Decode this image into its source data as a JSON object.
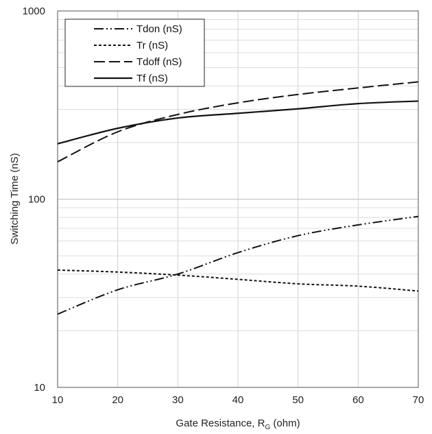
{
  "chart_data": {
    "type": "line",
    "xlabel": "Gate Resistance, R",
    "xlabel_subscript": "G",
    "xlabel_suffix": " (ohm)",
    "ylabel": "Switching Time (nS)",
    "xlim": [
      10,
      70
    ],
    "ylim": [
      10,
      1000
    ],
    "yscale": "log",
    "grid": true,
    "legend_position": "top-left",
    "x_ticks": [
      "10",
      "20",
      "30",
      "40",
      "50",
      "60",
      "70"
    ],
    "y_ticks": [
      "10",
      "100",
      "1000"
    ],
    "series": [
      {
        "name": "Tdon (nS)",
        "style": "dash-dot-dot",
        "x": [
          10,
          20,
          30,
          40,
          50,
          60,
          70
        ],
        "y": [
          24.5,
          33,
          40,
          52,
          64,
          73,
          81
        ]
      },
      {
        "name": "Tr (nS)",
        "style": "short-dash",
        "x": [
          10,
          20,
          30,
          40,
          50,
          60,
          70
        ],
        "y": [
          42,
          41,
          39.5,
          37.5,
          35.5,
          34.5,
          32.5
        ]
      },
      {
        "name": "Tdoff (nS)",
        "style": "long-dash",
        "x": [
          10,
          20,
          30,
          40,
          50,
          60,
          70
        ],
        "y": [
          158,
          228,
          282,
          325,
          360,
          390,
          420
        ]
      },
      {
        "name": "Tf (nS)",
        "style": "solid",
        "x": [
          10,
          20,
          30,
          40,
          50,
          60,
          70
        ],
        "y": [
          197,
          238,
          270,
          286,
          302,
          322,
          332
        ]
      }
    ]
  }
}
